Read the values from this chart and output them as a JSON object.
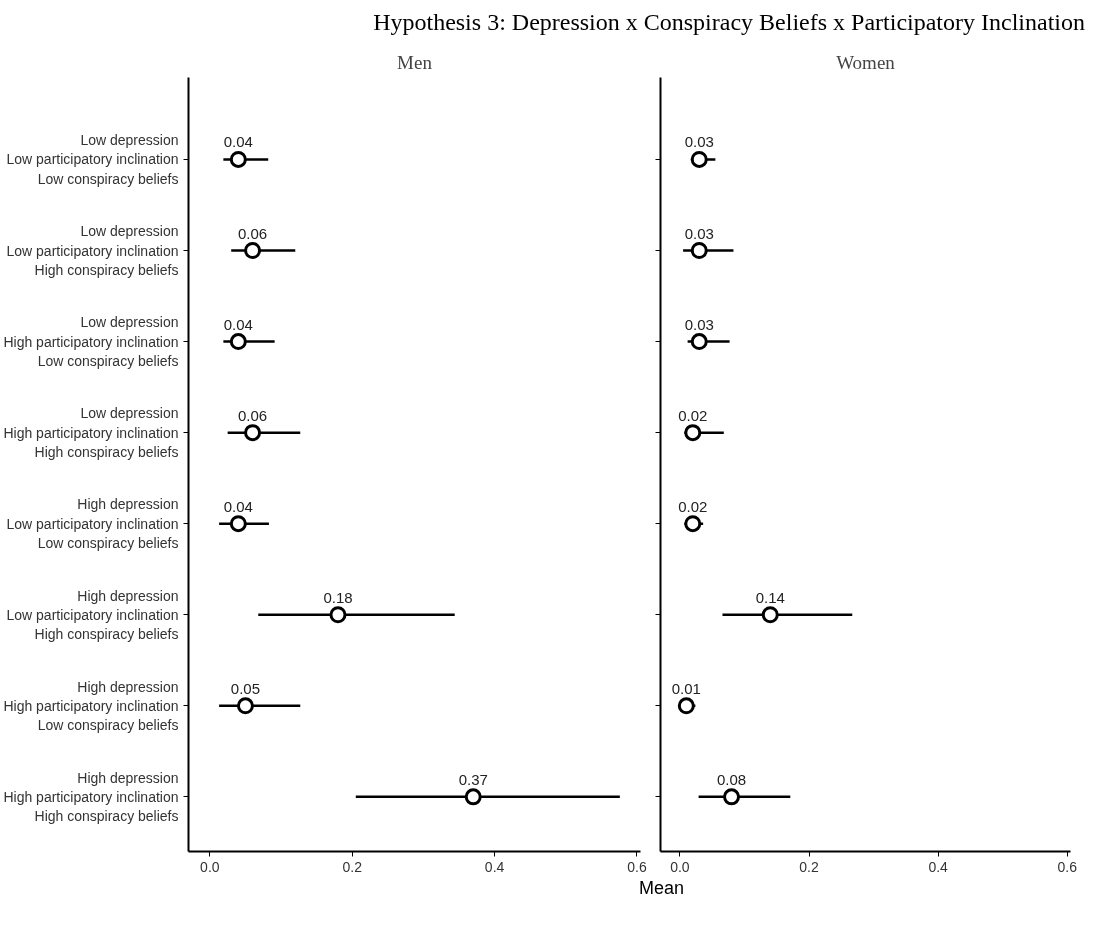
{
  "chart_data": [
    {
      "type": "scatter",
      "title": "Hypothesis 3: Depression x Conspiracy Beliefs x Participatory Inclination",
      "subtitle": "Men",
      "xlabel": "Mean",
      "categories": [
        "Low depression\nLow participatory inclination\nLow conspiracy beliefs",
        "Low depression\nLow participatory inclination\nHigh conspiracy beliefs",
        "Low depression\nHigh participatory inclination\nLow conspiracy beliefs",
        "Low depression\nHigh participatory inclination\nHigh conspiracy beliefs",
        "High depression\nLow participatory inclination\nLow conspiracy beliefs",
        "High depression\nLow participatory inclination\nHigh conspiracy beliefs",
        "High depression\nHigh participatory inclination\nLow conspiracy beliefs",
        "High depression\nHigh participatory inclination\nHigh conspiracy beliefs"
      ],
      "orientation": "horizontal",
      "values": [
        0.04,
        0.06,
        0.04,
        0.06,
        0.04,
        0.18,
        0.05,
        0.37
      ],
      "errors": [
        [
          0.019,
          0.082
        ],
        [
          0.03,
          0.12
        ],
        [
          0.019,
          0.091
        ],
        [
          0.025,
          0.127
        ],
        [
          0.013,
          0.083
        ],
        [
          0.068,
          0.344
        ],
        [
          0.013,
          0.127
        ],
        [
          0.205,
          0.576
        ]
      ],
      "color": "#000000",
      "marker": "circle",
      "data_labels": true,
      "grid": false,
      "xlim": [
        -0.03,
        0.605
      ],
      "xticks": [
        {
          "value": 0,
          "label": "0.0"
        },
        0.2,
        0.4,
        0.6
      ]
    },
    {
      "type": "scatter",
      "title": "Women",
      "categories": [
        null,
        null,
        null,
        null,
        null,
        null,
        null,
        null
      ],
      "orientation": "horizontal",
      "values": [
        0.03,
        0.03,
        0.03,
        0.02,
        0.02,
        0.14,
        0.01,
        0.08
      ],
      "errors": [
        [
          0.017,
          0.055
        ],
        [
          0.005,
          0.083
        ],
        [
          0.012,
          0.077
        ],
        [
          0.007,
          0.068
        ],
        [
          0.007,
          0.036
        ],
        [
          0.066,
          0.267
        ],
        [
          0.001,
          0.024
        ],
        [
          0.029,
          0.171
        ]
      ],
      "color": "#000000",
      "marker": "circle",
      "data_labels": true,
      "grid": false,
      "tick_labels": "x",
      "xlim": [
        -0.03,
        0.605
      ],
      "xticks": [
        {
          "value": 0,
          "label": "0.0"
        },
        0.2,
        0.4,
        0.6
      ]
    }
  ]
}
